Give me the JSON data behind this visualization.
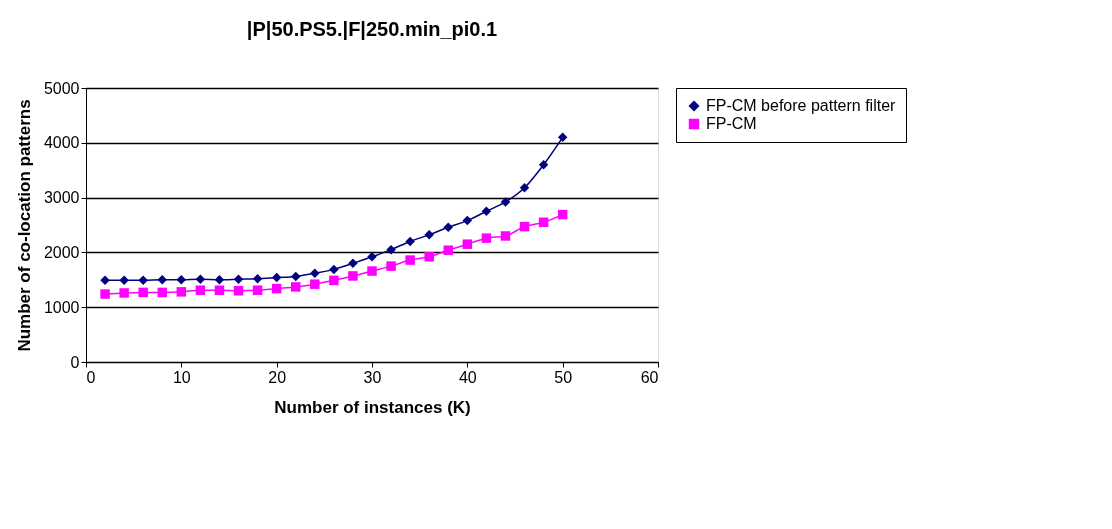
{
  "chart_data": {
    "type": "line",
    "title": "|P|50.PS5.|F|250.min_pi0.1",
    "xlabel": "Number of instances (K)",
    "ylabel": "Number of co-location patterns",
    "x": [
      2,
      4,
      6,
      8,
      10,
      12,
      14,
      16,
      18,
      20,
      22,
      24,
      26,
      28,
      30,
      32,
      34,
      36,
      38,
      40,
      42,
      44,
      46,
      48,
      50
    ],
    "series": [
      {
        "name": "FP-CM before pattern filter",
        "color": "#000080",
        "marker": "diamond",
        "values": [
          1490,
          1490,
          1490,
          1500,
          1500,
          1510,
          1500,
          1510,
          1520,
          1540,
          1560,
          1620,
          1690,
          1800,
          1920,
          2050,
          2200,
          2320,
          2460,
          2580,
          2750,
          2920,
          3180,
          3600,
          4100
        ]
      },
      {
        "name": "FP-CM",
        "color": "#ff00ff",
        "marker": "square",
        "values": [
          1240,
          1260,
          1270,
          1270,
          1280,
          1310,
          1310,
          1300,
          1310,
          1340,
          1370,
          1420,
          1490,
          1570,
          1660,
          1750,
          1860,
          1920,
          2040,
          2150,
          2260,
          2300,
          2470,
          2550,
          2690
        ]
      }
    ],
    "xlim": [
      0,
      60
    ],
    "xticks": [
      0,
      10,
      20,
      30,
      40,
      50,
      60
    ],
    "ylim": [
      0,
      5000
    ],
    "yticks": [
      0,
      1000,
      2000,
      3000,
      4000,
      5000
    ],
    "grid": "y",
    "legend": "right",
    "line_style": "solid"
  }
}
